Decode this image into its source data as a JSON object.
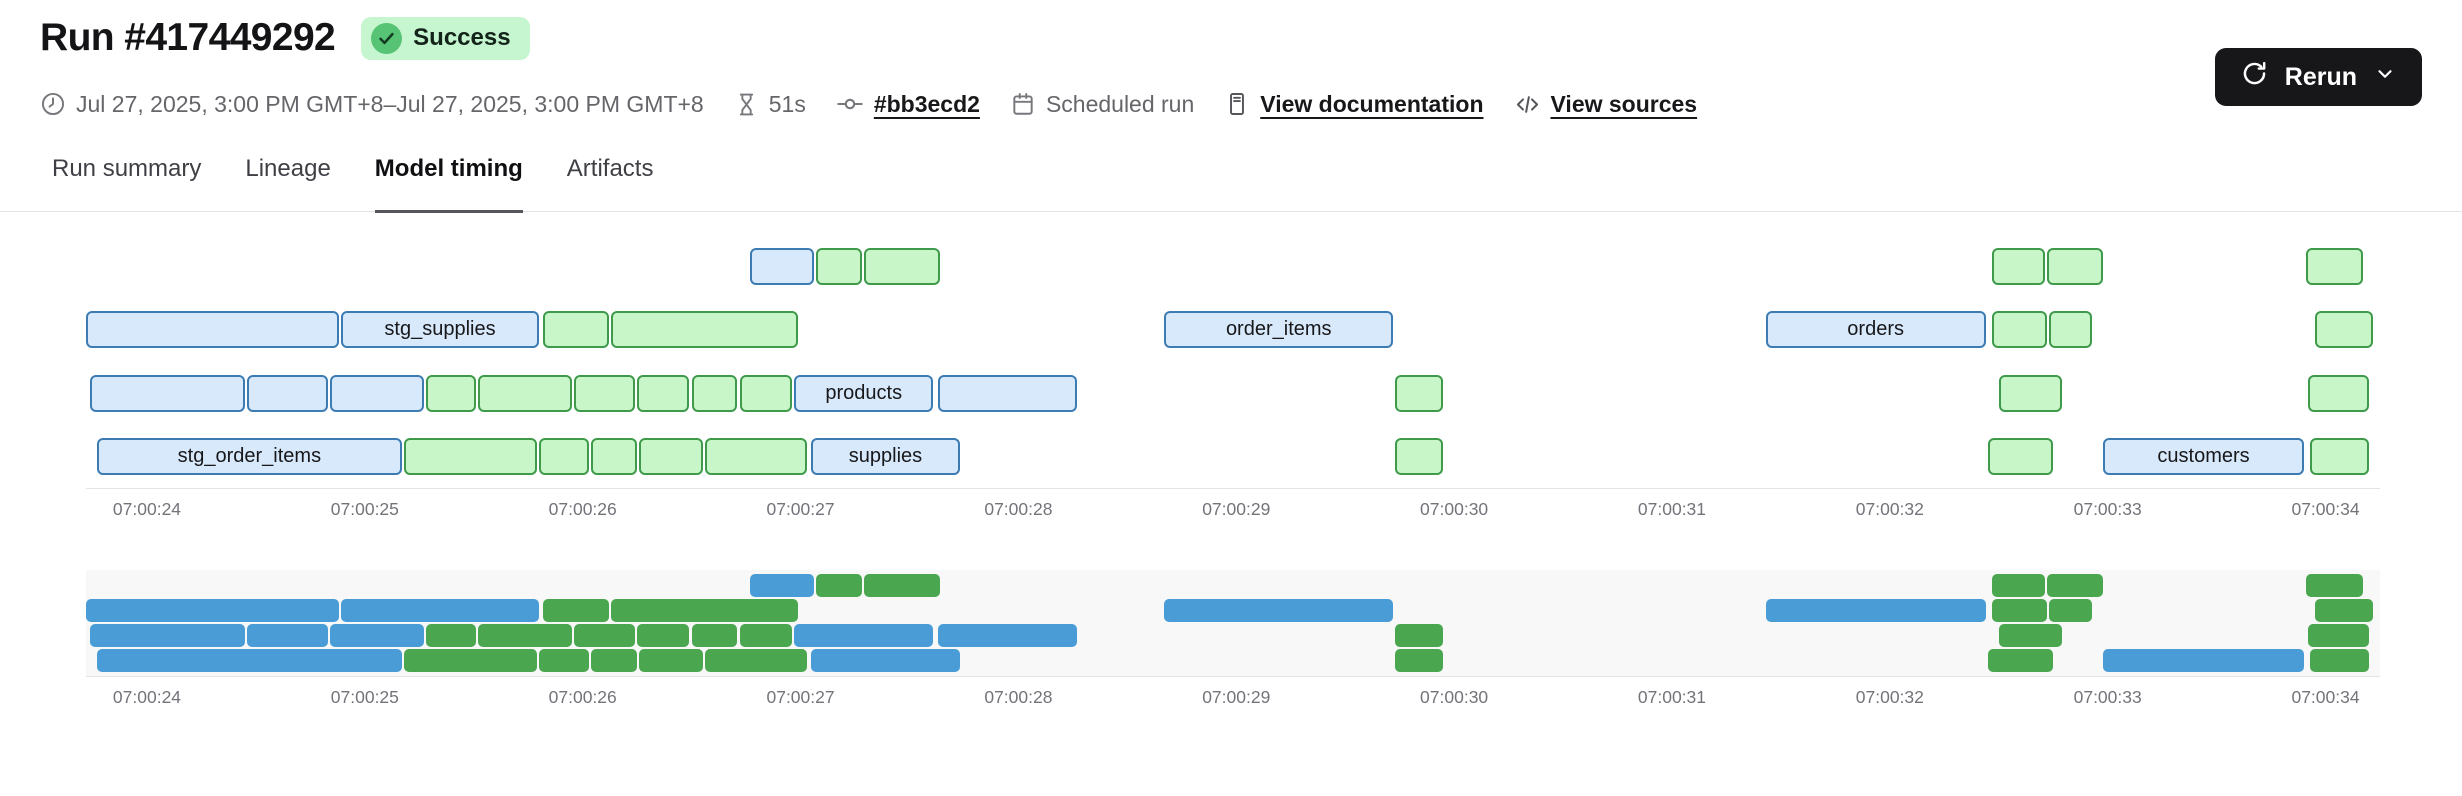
{
  "header": {
    "title": "Run #417449292",
    "status_badge": "Success",
    "rerun_label": "Rerun",
    "meta": {
      "time_range": "Jul 27, 2025, 3:00 PM GMT+8–Jul 27, 2025, 3:00 PM GMT+8",
      "duration": "51s",
      "commit": "#bb3ecd2",
      "trigger": "Scheduled run",
      "doc_link": "View documentation",
      "sources_link": "View sources"
    }
  },
  "tabs": [
    {
      "label": "Run summary",
      "active": false
    },
    {
      "label": "Lineage",
      "active": false
    },
    {
      "label": "Model timing",
      "active": true
    },
    {
      "label": "Artifacts",
      "active": false
    }
  ],
  "colors": {
    "badge_bg": "#c6f6d0",
    "badge_icon_bg": "#57c374",
    "badge_check": "#123b22",
    "button_bg": "#17171a",
    "bar_blue_fill": "#d7e9fa",
    "bar_blue_border": "#3d7cb2",
    "bar_green_fill": "#c9f6c9",
    "bar_green_border": "#3f9a4b",
    "mini_blue": "#4a9cd6",
    "mini_green": "#4aa64f",
    "minimap_bg": "#f8f8f9",
    "axis_line": "#e4e4e7",
    "axis_text": "#73737a"
  },
  "chart_data": {
    "type": "gantt",
    "title": "Model timing",
    "has_minimap": true,
    "time_unit": "seconds after 07:00:24",
    "x_axis": {
      "tick_labels": [
        "07:00:24",
        "07:00:25",
        "07:00:26",
        "07:00:27",
        "07:00:28",
        "07:00:29",
        "07:00:30",
        "07:00:31",
        "07:00:32",
        "07:00:33",
        "07:00:34"
      ],
      "tick_seconds": [
        0,
        1,
        2,
        3,
        4,
        5,
        6,
        7,
        8,
        9,
        10
      ],
      "range_seconds": [
        -0.28,
        10.25
      ]
    },
    "rows": [
      [
        {
          "start": 2.77,
          "end": 3.06,
          "color": "blue"
        },
        {
          "start": 3.07,
          "end": 3.28,
          "color": "green"
        },
        {
          "start": 3.29,
          "end": 3.64,
          "color": "green"
        },
        {
          "start": 8.47,
          "end": 8.71,
          "color": "green"
        },
        {
          "start": 8.72,
          "end": 8.98,
          "color": "green"
        },
        {
          "start": 9.91,
          "end": 10.17,
          "color": "green"
        }
      ],
      [
        {
          "start": -0.28,
          "end": 0.88,
          "color": "blue"
        },
        {
          "start": 0.89,
          "end": 1.8,
          "color": "blue",
          "label": "stg_supplies"
        },
        {
          "start": 1.82,
          "end": 2.12,
          "color": "green"
        },
        {
          "start": 2.13,
          "end": 2.99,
          "color": "green"
        },
        {
          "start": 4.67,
          "end": 5.72,
          "color": "blue",
          "label": "order_items"
        },
        {
          "start": 7.43,
          "end": 8.44,
          "color": "blue",
          "label": "orders"
        },
        {
          "start": 8.47,
          "end": 8.72,
          "color": "green"
        },
        {
          "start": 8.73,
          "end": 8.93,
          "color": "green"
        },
        {
          "start": 9.95,
          "end": 10.22,
          "color": "green"
        }
      ],
      [
        {
          "start": -0.26,
          "end": 0.45,
          "color": "blue"
        },
        {
          "start": 0.46,
          "end": 0.83,
          "color": "blue"
        },
        {
          "start": 0.84,
          "end": 1.27,
          "color": "blue"
        },
        {
          "start": 1.28,
          "end": 1.51,
          "color": "green"
        },
        {
          "start": 1.52,
          "end": 1.95,
          "color": "green"
        },
        {
          "start": 1.96,
          "end": 2.24,
          "color": "green"
        },
        {
          "start": 2.25,
          "end": 2.49,
          "color": "green"
        },
        {
          "start": 2.5,
          "end": 2.71,
          "color": "green"
        },
        {
          "start": 2.72,
          "end": 2.96,
          "color": "green"
        },
        {
          "start": 2.97,
          "end": 3.61,
          "color": "blue",
          "label": "products"
        },
        {
          "start": 3.63,
          "end": 4.27,
          "color": "blue"
        },
        {
          "start": 5.73,
          "end": 5.95,
          "color": "green"
        },
        {
          "start": 8.5,
          "end": 8.79,
          "color": "green"
        },
        {
          "start": 9.92,
          "end": 10.2,
          "color": "green"
        }
      ],
      [
        {
          "start": -0.23,
          "end": 1.17,
          "color": "blue",
          "label": "stg_order_items"
        },
        {
          "start": 1.18,
          "end": 1.79,
          "color": "green"
        },
        {
          "start": 1.8,
          "end": 2.03,
          "color": "green"
        },
        {
          "start": 2.04,
          "end": 2.25,
          "color": "green"
        },
        {
          "start": 2.26,
          "end": 2.55,
          "color": "green"
        },
        {
          "start": 2.56,
          "end": 3.03,
          "color": "green"
        },
        {
          "start": 3.05,
          "end": 3.73,
          "color": "blue",
          "label": "supplies"
        },
        {
          "start": 5.73,
          "end": 5.95,
          "color": "green"
        },
        {
          "start": 8.45,
          "end": 8.75,
          "color": "green"
        },
        {
          "start": 8.98,
          "end": 9.9,
          "color": "blue",
          "label": "customers"
        },
        {
          "start": 9.93,
          "end": 10.2,
          "color": "green"
        }
      ]
    ]
  }
}
